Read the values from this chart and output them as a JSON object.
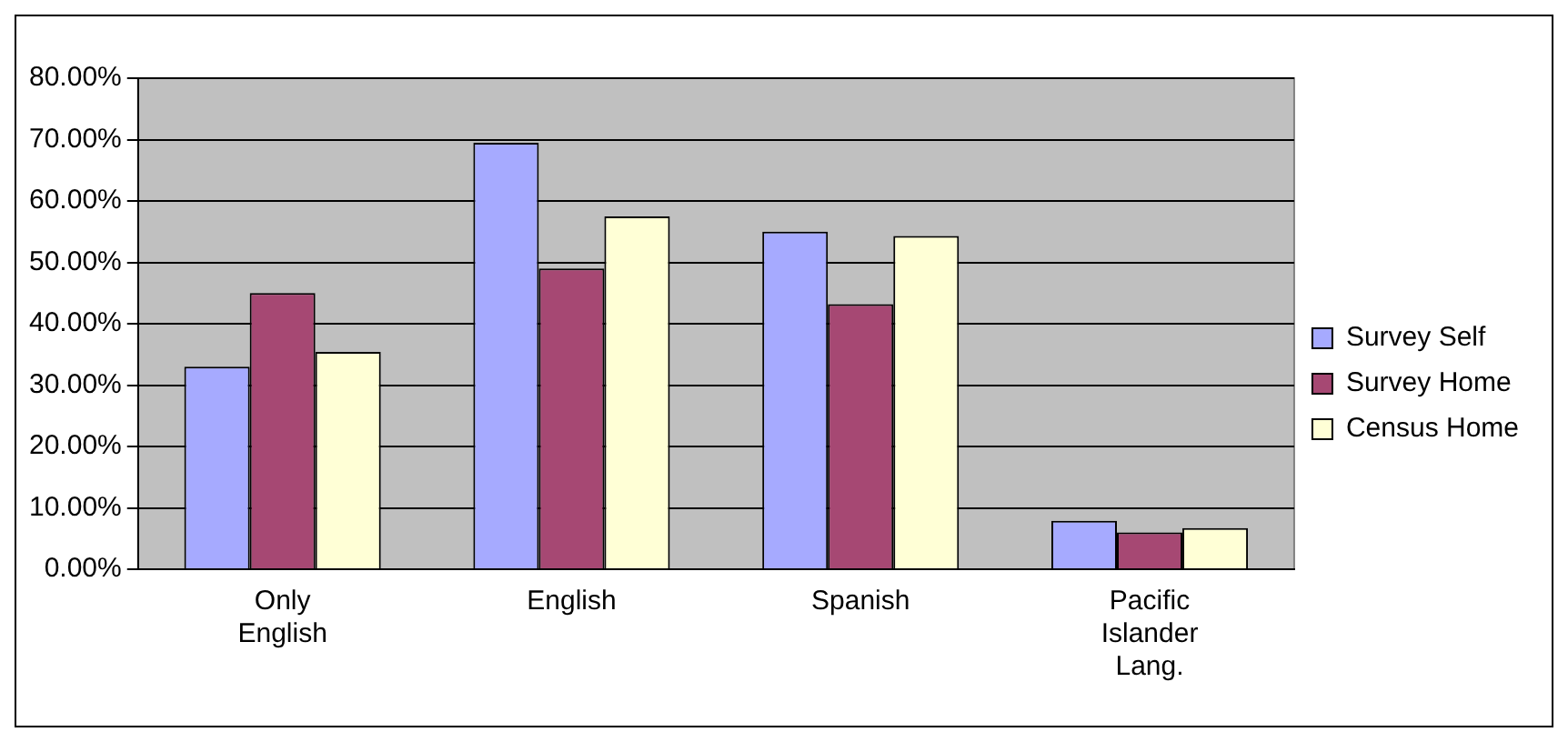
{
  "chart_data": {
    "type": "bar",
    "categories": [
      "Only English",
      "English",
      "Spanish",
      "Pacific Islander Lang."
    ],
    "series": [
      {
        "name": "Survey Self",
        "color": "#a6aaff",
        "values": [
          33.0,
          69.5,
          55.0,
          7.9
        ]
      },
      {
        "name": "Survey Home",
        "color": "#a64873",
        "values": [
          45.0,
          49.0,
          43.2,
          6.0
        ]
      },
      {
        "name": "Census Home",
        "color": "#ffffd6",
        "values": [
          35.4,
          57.5,
          54.3,
          6.7
        ]
      }
    ],
    "ylim": [
      0,
      80
    ],
    "yticks": [
      {
        "value": 0,
        "label": "0.00%"
      },
      {
        "value": 10,
        "label": "10.00%"
      },
      {
        "value": 20,
        "label": "20.00%"
      },
      {
        "value": 30,
        "label": "30.00%"
      },
      {
        "value": 40,
        "label": "40.00%"
      },
      {
        "value": 50,
        "label": "50.00%"
      },
      {
        "value": 60,
        "label": "60.00%"
      },
      {
        "value": 70,
        "label": "70.00%"
      },
      {
        "value": 80,
        "label": "80.00%"
      }
    ],
    "grid": "y",
    "legend": "right"
  }
}
